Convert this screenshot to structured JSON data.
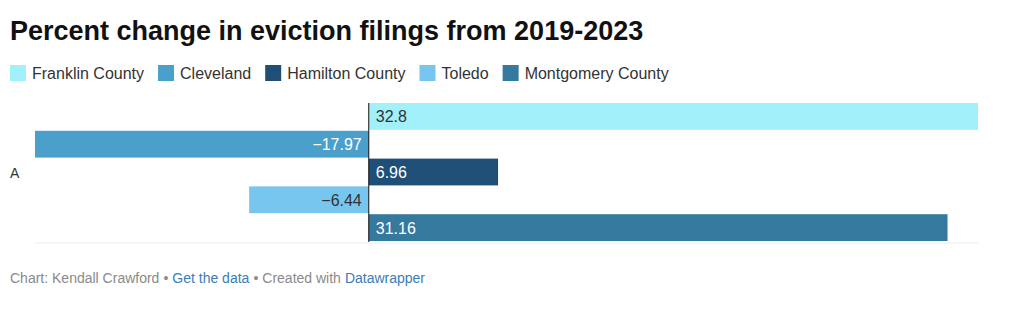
{
  "chart_data": {
    "type": "bar",
    "orientation": "horizontal",
    "title": "Percent change in eviction filings from 2019-2023",
    "categories": [
      "A"
    ],
    "series": [
      {
        "name": "Franklin County",
        "color": "#a2f0fa",
        "values": [
          32.8
        ]
      },
      {
        "name": "Cleveland",
        "color": "#4b9fcb",
        "values": [
          -17.97
        ],
        "value_labels": [
          "−17.97"
        ]
      },
      {
        "name": "Hamilton County",
        "color": "#1f4e76",
        "values": [
          6.96
        ]
      },
      {
        "name": "Toledo",
        "color": "#76c6ef",
        "values": [
          -6.44
        ],
        "value_labels": [
          "−6.44"
        ]
      },
      {
        "name": "Montgomery County",
        "color": "#35799f",
        "values": [
          31.16
        ]
      }
    ],
    "xlim": [
      -17.97,
      32.8
    ],
    "xticks": [
      0
    ],
    "tick_labels": "y",
    "data_labels": true,
    "grid": false,
    "legend": "top-left",
    "annotations": [
      "Chart: Kendall Crawford",
      "•",
      "Get the data",
      "•",
      "Created with",
      "Datawrapper"
    ]
  }
}
